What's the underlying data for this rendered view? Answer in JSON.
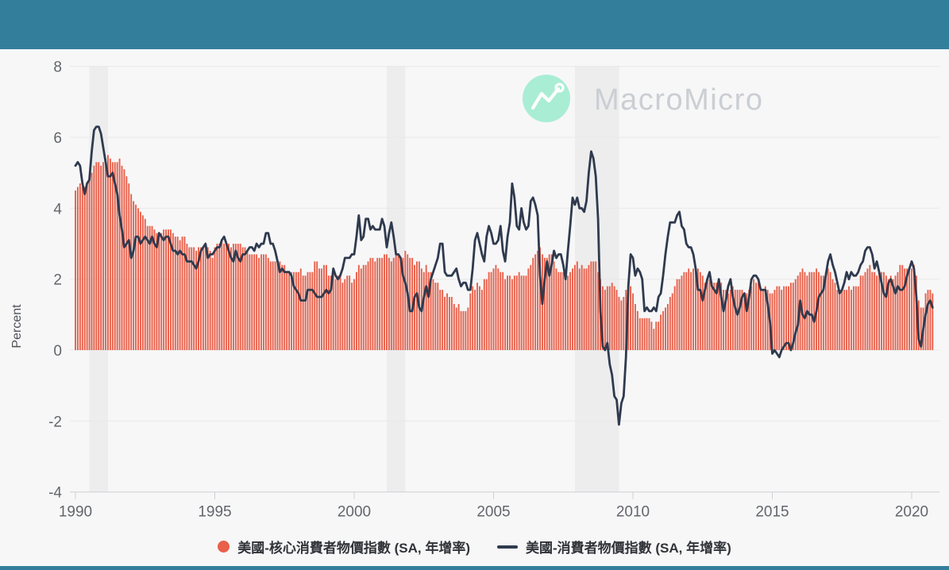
{
  "watermark": {
    "text": "MacroMicro"
  },
  "colors": {
    "topbar": "#337f9b",
    "background": "#f7f7f8",
    "bar_series": "#e8604a",
    "line_series": "#2f3a4e",
    "gridline": "#e8e8ea",
    "axis_line": "#cfd0d3",
    "recession_band": "#ededee",
    "tick_text": "#63666b",
    "watermark_circle": "#a9edd5",
    "watermark_text": "#cbced2"
  },
  "legend": {
    "items": [
      {
        "label": "美國-核心消費者物價指數 (SA, 年增率)",
        "marker": "dot"
      },
      {
        "label": "美國-消費者物價指數 (SA, 年增率)",
        "marker": "line"
      }
    ]
  },
  "chart_data": {
    "type": "bar+line",
    "ylabel": "Percent",
    "ylim": [
      -4,
      8
    ],
    "yticks": [
      8,
      6,
      4,
      2,
      0,
      -2,
      -4
    ],
    "xticks": [
      1990,
      1995,
      2000,
      2005,
      2010,
      2015,
      2020
    ],
    "x_start": "1990-01",
    "x_end": "2020-10",
    "frequency": "monthly",
    "grid": "horizontal",
    "legend_position": "bottom",
    "recession_bands": [
      [
        1990.5,
        1991.17
      ],
      [
        2001.17,
        2001.83
      ],
      [
        2007.92,
        2009.5
      ]
    ],
    "series": [
      {
        "name": "美國-核心消費者物價指數 (SA, 年增率)",
        "type": "bar",
        "color": "#e8604a",
        "values": [
          4.5,
          4.6,
          4.7,
          4.6,
          4.6,
          4.7,
          4.8,
          5.0,
          5.2,
          5.3,
          5.3,
          5.2,
          5.3,
          5.4,
          5.5,
          5.4,
          5.3,
          5.3,
          5.3,
          5.4,
          5.2,
          5.1,
          4.9,
          4.7,
          4.4,
          4.2,
          4.1,
          4.0,
          3.9,
          3.8,
          3.7,
          3.5,
          3.5,
          3.5,
          3.4,
          3.3,
          3.2,
          3.3,
          3.4,
          3.4,
          3.4,
          3.4,
          3.3,
          3.2,
          3.2,
          3.1,
          3.2,
          3.2,
          3.0,
          2.9,
          2.9,
          2.9,
          2.8,
          2.9,
          2.9,
          2.9,
          2.9,
          2.9,
          2.8,
          2.6,
          2.9,
          3.0,
          3.0,
          3.1,
          3.0,
          3.0,
          3.0,
          2.9,
          3.0,
          3.0,
          3.0,
          3.0,
          2.9,
          2.9,
          2.8,
          2.7,
          2.7,
          2.7,
          2.7,
          2.6,
          2.7,
          2.7,
          2.7,
          2.6,
          2.5,
          2.5,
          2.5,
          2.5,
          2.5,
          2.4,
          2.4,
          2.2,
          2.2,
          2.2,
          2.2,
          2.2,
          2.2,
          2.3,
          2.1,
          2.1,
          2.2,
          2.2,
          2.2,
          2.5,
          2.5,
          2.3,
          2.3,
          2.4,
          2.4,
          2.1,
          2.1,
          2.2,
          2.0,
          2.1,
          2.1,
          1.9,
          2.0,
          2.1,
          2.1,
          1.9,
          2.0,
          2.2,
          2.4,
          2.3,
          2.4,
          2.4,
          2.5,
          2.6,
          2.6,
          2.5,
          2.6,
          2.6,
          2.6,
          2.7,
          2.7,
          2.6,
          2.5,
          2.6,
          2.7,
          2.7,
          2.6,
          2.6,
          2.8,
          2.7,
          2.6,
          2.6,
          2.4,
          2.5,
          2.5,
          2.3,
          2.2,
          2.4,
          2.2,
          2.2,
          2.0,
          1.9,
          1.9,
          1.7,
          1.7,
          1.5,
          1.6,
          1.5,
          1.5,
          1.3,
          1.2,
          1.3,
          1.1,
          1.1,
          1.1,
          1.2,
          1.6,
          1.8,
          1.7,
          1.9,
          1.8,
          1.7,
          2.0,
          2.0,
          2.2,
          2.2,
          2.3,
          2.4,
          2.3,
          2.2,
          2.2,
          2.0,
          2.1,
          2.1,
          2.0,
          2.1,
          2.1,
          2.2,
          2.1,
          2.1,
          2.1,
          2.3,
          2.4,
          2.6,
          2.7,
          2.8,
          2.9,
          2.7,
          2.6,
          2.6,
          2.7,
          2.7,
          2.5,
          2.3,
          2.2,
          2.2,
          2.2,
          2.1,
          2.1,
          2.2,
          2.3,
          2.4,
          2.5,
          2.3,
          2.4,
          2.3,
          2.3,
          2.4,
          2.5,
          2.5,
          2.5,
          2.2,
          2.0,
          1.8,
          1.7,
          1.8,
          1.8,
          1.9,
          1.8,
          1.7,
          1.5,
          1.4,
          1.5,
          1.7,
          1.7,
          1.8,
          1.6,
          1.3,
          1.1,
          0.9,
          0.9,
          0.9,
          0.9,
          0.9,
          0.8,
          0.6,
          0.8,
          0.8,
          1.0,
          1.1,
          1.2,
          1.3,
          1.5,
          1.6,
          1.8,
          2.0,
          2.0,
          2.1,
          2.2,
          2.2,
          2.3,
          2.2,
          2.3,
          2.3,
          2.3,
          2.2,
          2.1,
          1.9,
          2.0,
          2.0,
          1.9,
          1.9,
          1.9,
          2.0,
          1.9,
          1.7,
          1.7,
          1.6,
          1.7,
          1.8,
          1.7,
          1.7,
          1.7,
          1.7,
          1.6,
          1.6,
          1.7,
          1.8,
          2.0,
          1.9,
          1.9,
          1.7,
          1.7,
          1.8,
          1.7,
          1.6,
          1.6,
          1.7,
          1.8,
          1.8,
          1.7,
          1.8,
          1.8,
          1.8,
          1.9,
          1.9,
          2.0,
          2.1,
          2.2,
          2.3,
          2.2,
          2.1,
          2.2,
          2.2,
          2.2,
          2.3,
          2.2,
          2.1,
          2.1,
          2.2,
          2.3,
          2.2,
          2.0,
          1.9,
          1.7,
          1.7,
          1.7,
          1.7,
          1.7,
          1.8,
          1.7,
          1.8,
          1.8,
          1.8,
          2.1,
          2.1,
          2.2,
          2.3,
          2.4,
          2.2,
          2.2,
          2.1,
          2.2,
          2.2,
          2.2,
          2.1,
          2.0,
          2.1,
          2.0,
          2.1,
          2.2,
          2.4,
          2.4,
          2.3,
          2.3,
          2.3,
          2.3,
          2.4,
          2.1,
          1.4,
          1.2,
          1.2,
          1.6,
          1.7,
          1.7,
          1.6
        ]
      },
      {
        "name": "美國-消費者物價指數 (SA, 年增率)",
        "type": "line",
        "color": "#2f3a4e",
        "values": [
          5.2,
          5.3,
          5.2,
          4.7,
          4.4,
          4.7,
          4.8,
          5.6,
          6.2,
          6.3,
          6.3,
          6.1,
          5.7,
          5.3,
          4.9,
          4.9,
          5.0,
          4.7,
          4.4,
          3.8,
          3.4,
          2.9,
          3.0,
          3.1,
          2.6,
          2.8,
          3.2,
          3.2,
          3.0,
          3.1,
          3.2,
          3.1,
          3.0,
          3.2,
          3.0,
          2.9,
          3.3,
          3.2,
          3.1,
          3.2,
          3.2,
          3.0,
          2.8,
          2.8,
          2.7,
          2.8,
          2.7,
          2.7,
          2.5,
          2.5,
          2.5,
          2.4,
          2.3,
          2.5,
          2.8,
          2.9,
          3.0,
          2.6,
          2.7,
          2.7,
          2.8,
          2.9,
          2.9,
          3.1,
          3.2,
          3.0,
          2.8,
          2.6,
          2.5,
          2.8,
          2.6,
          2.5,
          2.7,
          2.7,
          2.8,
          2.9,
          2.9,
          2.8,
          3.0,
          2.9,
          3.0,
          3.0,
          3.3,
          3.3,
          3.0,
          3.0,
          2.8,
          2.5,
          2.2,
          2.3,
          2.2,
          2.2,
          2.2,
          2.1,
          1.8,
          1.7,
          1.6,
          1.4,
          1.4,
          1.4,
          1.7,
          1.7,
          1.7,
          1.6,
          1.5,
          1.5,
          1.5,
          1.6,
          1.7,
          1.6,
          1.7,
          2.3,
          2.1,
          2.0,
          2.1,
          2.3,
          2.6,
          2.6,
          2.6,
          2.7,
          2.7,
          3.2,
          3.8,
          3.1,
          3.2,
          3.7,
          3.7,
          3.4,
          3.5,
          3.4,
          3.4,
          3.4,
          3.7,
          3.5,
          2.9,
          3.3,
          3.6,
          3.2,
          2.7,
          2.7,
          2.6,
          2.1,
          1.9,
          1.6,
          1.1,
          1.1,
          1.5,
          1.6,
          1.2,
          1.1,
          1.5,
          1.8,
          1.5,
          2.0,
          2.2,
          2.4,
          2.6,
          3.0,
          3.0,
          2.2,
          2.1,
          2.1,
          2.1,
          2.2,
          2.3,
          2.0,
          1.8,
          1.9,
          1.9,
          1.7,
          1.7,
          2.3,
          3.1,
          3.3,
          3.0,
          2.7,
          2.5,
          3.2,
          3.5,
          3.3,
          3.0,
          3.0,
          3.1,
          3.5,
          2.8,
          2.5,
          3.2,
          3.6,
          4.7,
          4.3,
          3.5,
          3.4,
          4.0,
          3.6,
          3.4,
          3.5,
          4.2,
          4.3,
          4.1,
          3.8,
          2.1,
          1.3,
          2.0,
          2.5,
          2.1,
          2.4,
          2.8,
          2.6,
          2.7,
          2.7,
          2.4,
          2.0,
          2.8,
          3.5,
          4.3,
          4.1,
          4.3,
          4.0,
          4.0,
          3.9,
          4.2,
          5.0,
          5.6,
          5.4,
          4.9,
          3.7,
          1.1,
          0.1,
          0.0,
          0.2,
          -0.4,
          -0.7,
          -1.3,
          -1.4,
          -2.1,
          -1.5,
          -1.3,
          -0.2,
          1.8,
          2.7,
          2.6,
          2.1,
          2.3,
          2.2,
          2.0,
          1.1,
          1.2,
          1.1,
          1.1,
          1.2,
          1.1,
          1.5,
          1.6,
          2.1,
          2.7,
          3.2,
          3.6,
          3.6,
          3.6,
          3.8,
          3.9,
          3.5,
          3.4,
          3.0,
          2.9,
          2.9,
          2.7,
          2.3,
          1.7,
          1.7,
          1.4,
          1.7,
          2.0,
          2.2,
          1.8,
          1.7,
          1.6,
          2.0,
          1.5,
          1.1,
          1.4,
          1.8,
          2.0,
          1.5,
          1.2,
          1.0,
          1.2,
          1.5,
          1.6,
          1.1,
          1.5,
          2.0,
          2.1,
          2.1,
          2.0,
          1.7,
          1.7,
          1.7,
          1.3,
          0.8,
          -0.1,
          0.0,
          -0.1,
          -0.2,
          0.0,
          0.1,
          0.2,
          0.2,
          0.0,
          0.2,
          0.5,
          0.7,
          1.4,
          1.0,
          0.9,
          1.1,
          1.0,
          1.0,
          0.8,
          1.1,
          1.5,
          1.6,
          1.7,
          2.1,
          2.5,
          2.7,
          2.4,
          2.2,
          1.9,
          1.6,
          1.7,
          1.9,
          2.2,
          2.0,
          2.2,
          2.1,
          2.1,
          2.2,
          2.4,
          2.5,
          2.8,
          2.9,
          2.9,
          2.7,
          2.3,
          2.5,
          2.2,
          1.9,
          1.6,
          1.5,
          1.9,
          2.0,
          1.8,
          1.6,
          1.8,
          1.7,
          1.7,
          1.8,
          2.1,
          2.3,
          2.5,
          2.3,
          1.5,
          0.3,
          0.1,
          0.6,
          1.0,
          1.3,
          1.4,
          1.2
        ]
      }
    ]
  }
}
